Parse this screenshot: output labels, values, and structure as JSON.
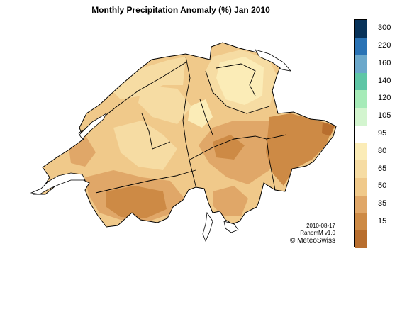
{
  "map": {
    "title": "Monthly Precipitation Anomaly (%) Jan 2010",
    "credit_date": "2010-08-17",
    "credit_product": "RanomM v1.0",
    "credit_org": "© MeteoSwiss"
  },
  "legend": {
    "bins": [
      {
        "color": "#b86e2e",
        "label": ""
      },
      {
        "color": "#cd8a45",
        "label": "15"
      },
      {
        "color": "#e0a768",
        "label": "35"
      },
      {
        "color": "#f0c98a",
        "label": "50"
      },
      {
        "color": "#f6dca3",
        "label": "65"
      },
      {
        "color": "#fbecb7",
        "label": "80"
      },
      {
        "color": "#ffffff",
        "label": "95"
      },
      {
        "color": "#d3f5cf",
        "label": "105"
      },
      {
        "color": "#a6ebb8",
        "label": "120"
      },
      {
        "color": "#5fc6a6",
        "label": "140"
      },
      {
        "color": "#6ba8cb",
        "label": "160"
      },
      {
        "color": "#2a73b5",
        "label": "220"
      },
      {
        "color": "#08335a",
        "label": "300"
      }
    ]
  }
}
